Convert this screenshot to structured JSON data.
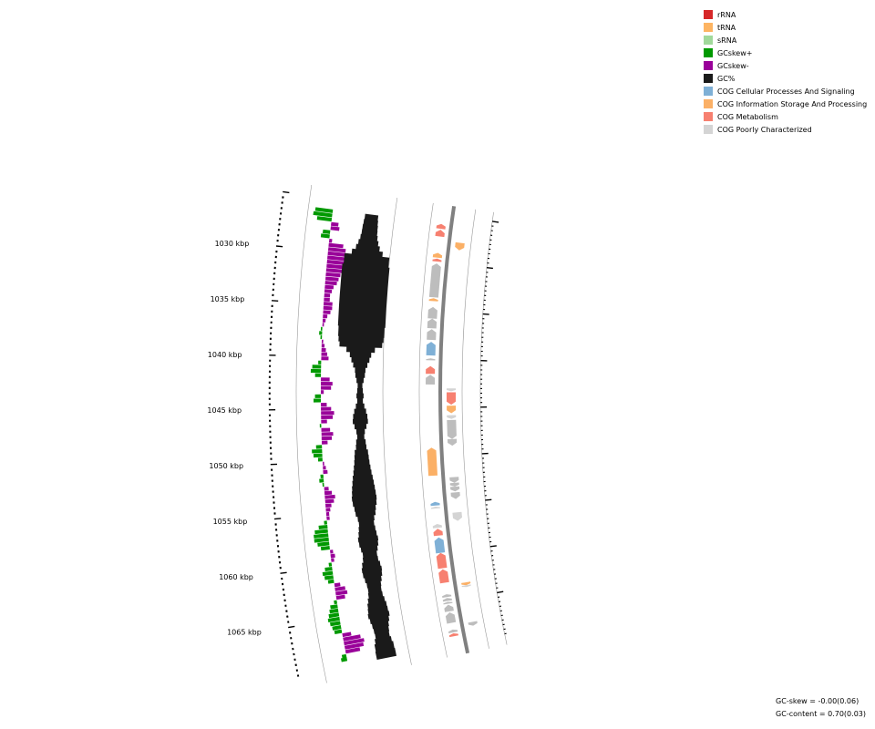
{
  "colors": {
    "rRNA": "#d62728",
    "tRNA": "#fdb462",
    "sRNA": "#a1d99b",
    "GCskew_pos": "#009900",
    "GCskew_neg": "#990099",
    "GC": "#1a1a1a",
    "cog_cellular": "#7fb0d6",
    "cog_information": "#fbb066",
    "cog_metabolism": "#f78070",
    "cog_poorly": "#d4d4d4",
    "feature_gray": "#bdbdbd",
    "backbone": "#808080"
  },
  "legend": [
    {
      "label": "rRNA",
      "color_key": "rRNA"
    },
    {
      "label": "tRNA",
      "color_key": "tRNA"
    },
    {
      "label": "sRNA",
      "color_key": "sRNA"
    },
    {
      "label": "GCskew+",
      "color_key": "GCskew_pos"
    },
    {
      "label": "GCskew-",
      "color_key": "GCskew_neg"
    },
    {
      "label": "GC%",
      "color_key": "GC"
    },
    {
      "label": "COG Cellular Processes And Signaling",
      "color_key": "cog_cellular"
    },
    {
      "label": "COG Information Storage And Processing",
      "color_key": "cog_information"
    },
    {
      "label": "COG Metabolism",
      "color_key": "cog_metabolism"
    },
    {
      "label": "COG Poorly Characterized",
      "color_key": "cog_poorly"
    }
  ],
  "stats": {
    "gc_skew": "GC-skew = -0.00(0.06)",
    "gc_content": "GC-content = 0.70(0.03)"
  },
  "axis": {
    "unit": "kbp",
    "start_kbp": 1026.0,
    "end_kbp": 1068.7,
    "labels": [
      {
        "kbp": 1030,
        "text": "1030 kbp"
      },
      {
        "kbp": 1035,
        "text": "1035 kbp"
      },
      {
        "kbp": 1040,
        "text": "1040 kbp"
      },
      {
        "kbp": 1045,
        "text": "1045 kbp"
      },
      {
        "kbp": 1050,
        "text": "1050 kbp"
      },
      {
        "kbp": 1055,
        "text": "1055 kbp"
      },
      {
        "kbp": 1060,
        "text": "1060 kbp"
      },
      {
        "kbp": 1065,
        "text": "1065 kbp"
      }
    ]
  },
  "gc_skew": [
    [
      1026.0,
      0.6
    ],
    [
      1026.4,
      0.65
    ],
    [
      1026.8,
      0.5
    ],
    [
      1027.2,
      -0.25
    ],
    [
      1027.6,
      -0.3
    ],
    [
      1028.0,
      0.25
    ],
    [
      1028.4,
      0.3
    ],
    [
      1028.8,
      -0.1
    ],
    [
      1029.2,
      -0.5
    ],
    [
      1029.6,
      -0.6
    ],
    [
      1030.0,
      -0.7
    ],
    [
      1030.4,
      -0.7
    ],
    [
      1030.8,
      -0.65
    ],
    [
      1031.2,
      -0.6
    ],
    [
      1031.6,
      -0.55
    ],
    [
      1032.0,
      -0.5
    ],
    [
      1032.4,
      -0.45
    ],
    [
      1032.8,
      -0.4
    ],
    [
      1033.2,
      -0.3
    ],
    [
      1033.6,
      -0.25
    ],
    [
      1034.0,
      -0.2
    ],
    [
      1034.4,
      -0.2
    ],
    [
      1034.8,
      -0.3
    ],
    [
      1035.2,
      -0.3
    ],
    [
      1035.6,
      -0.25
    ],
    [
      1036.0,
      -0.15
    ],
    [
      1036.4,
      -0.1
    ],
    [
      1036.8,
      -0.05
    ],
    [
      1037.2,
      0.05
    ],
    [
      1037.6,
      0.1
    ],
    [
      1038.0,
      0.05
    ],
    [
      1038.4,
      -0.05
    ],
    [
      1038.8,
      -0.1
    ],
    [
      1039.2,
      -0.15
    ],
    [
      1039.6,
      -0.2
    ],
    [
      1040.0,
      -0.25
    ],
    [
      1040.4,
      0.1
    ],
    [
      1040.8,
      0.3
    ],
    [
      1041.2,
      0.35
    ],
    [
      1041.6,
      0.2
    ],
    [
      1042.0,
      -0.3
    ],
    [
      1042.4,
      -0.4
    ],
    [
      1042.8,
      -0.35
    ],
    [
      1043.2,
      -0.1
    ],
    [
      1043.6,
      0.2
    ],
    [
      1044.0,
      0.25
    ],
    [
      1044.4,
      -0.2
    ],
    [
      1044.8,
      -0.35
    ],
    [
      1045.2,
      -0.45
    ],
    [
      1045.6,
      -0.4
    ],
    [
      1046.0,
      -0.2
    ],
    [
      1046.4,
      0.05
    ],
    [
      1046.8,
      -0.3
    ],
    [
      1047.2,
      -0.4
    ],
    [
      1047.6,
      -0.35
    ],
    [
      1048.0,
      -0.2
    ],
    [
      1048.4,
      0.2
    ],
    [
      1048.8,
      0.35
    ],
    [
      1049.2,
      0.3
    ],
    [
      1049.6,
      0.15
    ],
    [
      1050.0,
      -0.05
    ],
    [
      1050.4,
      -0.1
    ],
    [
      1050.8,
      -0.15
    ],
    [
      1051.2,
      0.1
    ],
    [
      1051.6,
      0.15
    ],
    [
      1052.0,
      0.05
    ],
    [
      1052.4,
      -0.15
    ],
    [
      1052.8,
      -0.25
    ],
    [
      1053.2,
      -0.35
    ],
    [
      1053.6,
      -0.3
    ],
    [
      1054.0,
      -0.2
    ],
    [
      1054.4,
      -0.15
    ],
    [
      1054.8,
      -0.1
    ],
    [
      1055.2,
      -0.1
    ],
    [
      1055.6,
      0.1
    ],
    [
      1056.0,
      0.3
    ],
    [
      1056.4,
      0.45
    ],
    [
      1056.8,
      0.5
    ],
    [
      1057.2,
      0.5
    ],
    [
      1057.6,
      0.4
    ],
    [
      1058.0,
      0.3
    ],
    [
      1058.4,
      -0.1
    ],
    [
      1058.8,
      -0.15
    ],
    [
      1059.2,
      -0.1
    ],
    [
      1059.6,
      0.1
    ],
    [
      1060.0,
      0.25
    ],
    [
      1060.4,
      0.35
    ],
    [
      1060.8,
      0.3
    ],
    [
      1061.2,
      0.2
    ],
    [
      1061.6,
      -0.2
    ],
    [
      1062.0,
      -0.35
    ],
    [
      1062.4,
      -0.4
    ],
    [
      1062.8,
      -0.3
    ],
    [
      1063.2,
      0.1
    ],
    [
      1063.6,
      0.25
    ],
    [
      1064.0,
      0.3
    ],
    [
      1064.4,
      0.35
    ],
    [
      1064.8,
      0.4
    ],
    [
      1065.2,
      0.35
    ],
    [
      1065.6,
      0.3
    ],
    [
      1066.0,
      0.25
    ],
    [
      1066.4,
      -0.3
    ],
    [
      1066.8,
      -0.6
    ],
    [
      1067.2,
      -0.7
    ],
    [
      1067.6,
      -0.65
    ],
    [
      1068.0,
      -0.5
    ],
    [
      1068.4,
      0.15
    ],
    [
      1068.7,
      0.2
    ]
  ],
  "gc_content": [
    [
      1026.0,
      0.28
    ],
    [
      1026.5,
      0.3
    ],
    [
      1027.0,
      0.32
    ],
    [
      1027.5,
      0.33
    ],
    [
      1028.0,
      0.36
    ],
    [
      1028.5,
      0.42
    ],
    [
      1029.0,
      0.5
    ],
    [
      1029.5,
      0.65
    ],
    [
      1030.0,
      0.95
    ],
    [
      1031.0,
      1.0
    ],
    [
      1032.0,
      1.0
    ],
    [
      1033.0,
      1.0
    ],
    [
      1034.0,
      1.0
    ],
    [
      1035.0,
      1.0
    ],
    [
      1036.0,
      1.0
    ],
    [
      1037.0,
      0.97
    ],
    [
      1038.0,
      0.95
    ],
    [
      1038.5,
      0.9
    ],
    [
      1039.0,
      0.6
    ],
    [
      1039.5,
      0.45
    ],
    [
      1040.0,
      0.38
    ],
    [
      1040.5,
      0.3
    ],
    [
      1041.0,
      0.22
    ],
    [
      1041.5,
      0.2
    ],
    [
      1042.0,
      0.15
    ],
    [
      1042.5,
      0.1
    ],
    [
      1043.0,
      0.12
    ],
    [
      1043.5,
      0.15
    ],
    [
      1044.0,
      0.12
    ],
    [
      1044.5,
      0.18
    ],
    [
      1045.0,
      0.25
    ],
    [
      1045.5,
      0.3
    ],
    [
      1046.0,
      0.32
    ],
    [
      1046.5,
      0.25
    ],
    [
      1047.0,
      0.18
    ],
    [
      1047.5,
      0.15
    ],
    [
      1048.0,
      0.2
    ],
    [
      1048.5,
      0.22
    ],
    [
      1049.0,
      0.28
    ],
    [
      1049.5,
      0.3
    ],
    [
      1050.0,
      0.32
    ],
    [
      1050.5,
      0.35
    ],
    [
      1051.0,
      0.38
    ],
    [
      1051.5,
      0.42
    ],
    [
      1052.0,
      0.45
    ],
    [
      1052.5,
      0.48
    ],
    [
      1053.0,
      0.5
    ],
    [
      1053.5,
      0.52
    ],
    [
      1054.0,
      0.5
    ],
    [
      1054.5,
      0.45
    ],
    [
      1055.0,
      0.42
    ],
    [
      1055.5,
      0.35
    ],
    [
      1056.0,
      0.32
    ],
    [
      1056.5,
      0.35
    ],
    [
      1057.0,
      0.38
    ],
    [
      1057.5,
      0.42
    ],
    [
      1058.0,
      0.4
    ],
    [
      1058.5,
      0.35
    ],
    [
      1059.0,
      0.3
    ],
    [
      1059.5,
      0.32
    ],
    [
      1060.0,
      0.38
    ],
    [
      1060.5,
      0.42
    ],
    [
      1061.0,
      0.4
    ],
    [
      1061.5,
      0.35
    ],
    [
      1062.0,
      0.3
    ],
    [
      1062.5,
      0.28
    ],
    [
      1063.0,
      0.3
    ],
    [
      1063.5,
      0.35
    ],
    [
      1064.0,
      0.4
    ],
    [
      1064.5,
      0.42
    ],
    [
      1065.0,
      0.45
    ],
    [
      1065.5,
      0.4
    ],
    [
      1066.0,
      0.35
    ],
    [
      1066.5,
      0.32
    ],
    [
      1067.0,
      0.3
    ],
    [
      1067.5,
      0.35
    ],
    [
      1068.0,
      0.4
    ],
    [
      1068.7,
      0.42
    ]
  ],
  "genes": [
    {
      "start": 1026.0,
      "end": 1026.5,
      "lane": "plus",
      "color_key": "cog_metabolism"
    },
    {
      "start": 1026.6,
      "end": 1027.3,
      "lane": "plus",
      "color_key": "cog_metabolism"
    },
    {
      "start": 1027.7,
      "end": 1028.5,
      "lane": "minus",
      "color_key": "cog_information"
    },
    {
      "start": 1029.0,
      "end": 1029.5,
      "lane": "plus",
      "color_key": "cog_information"
    },
    {
      "start": 1029.6,
      "end": 1029.9,
      "lane": "plus",
      "color_key": "cog_metabolism"
    },
    {
      "start": 1030.1,
      "end": 1033.6,
      "lane": "plus",
      "color_key": "feature_gray"
    },
    {
      "start": 1033.7,
      "end": 1034.0,
      "lane": "plus",
      "color_key": "cog_information"
    },
    {
      "start": 1034.6,
      "end": 1035.8,
      "lane": "plus",
      "color_key": "feature_gray"
    },
    {
      "start": 1035.8,
      "end": 1036.8,
      "lane": "plus",
      "color_key": "feature_gray"
    },
    {
      "start": 1036.9,
      "end": 1038.0,
      "lane": "plus",
      "color_key": "feature_gray"
    },
    {
      "start": 1038.2,
      "end": 1039.6,
      "lane": "plus",
      "color_key": "cog_cellular"
    },
    {
      "start": 1039.9,
      "end": 1040.1,
      "lane": "plus",
      "color_key": "feature_gray"
    },
    {
      "start": 1040.7,
      "end": 1041.5,
      "lane": "plus",
      "color_key": "cog_metabolism"
    },
    {
      "start": 1041.6,
      "end": 1042.6,
      "lane": "plus",
      "color_key": "feature_gray"
    },
    {
      "start": 1043.0,
      "end": 1043.3,
      "lane": "minus",
      "color_key": "cog_poorly"
    },
    {
      "start": 1043.4,
      "end": 1044.7,
      "lane": "minus",
      "color_key": "cog_metabolism"
    },
    {
      "start": 1044.8,
      "end": 1045.6,
      "lane": "minus",
      "color_key": "cog_information"
    },
    {
      "start": 1045.8,
      "end": 1046.2,
      "lane": "minus",
      "color_key": "cog_poorly"
    },
    {
      "start": 1046.3,
      "end": 1048.3,
      "lane": "minus",
      "color_key": "feature_gray"
    },
    {
      "start": 1048.3,
      "end": 1049.0,
      "lane": "minus",
      "color_key": "feature_gray"
    },
    {
      "start": 1049.1,
      "end": 1052.0,
      "lane": "plus",
      "color_key": "cog_information"
    },
    {
      "start": 1052.3,
      "end": 1052.9,
      "lane": "minus",
      "color_key": "feature_gray"
    },
    {
      "start": 1052.9,
      "end": 1053.3,
      "lane": "minus",
      "color_key": "feature_gray"
    },
    {
      "start": 1053.3,
      "end": 1053.8,
      "lane": "minus",
      "color_key": "feature_gray"
    },
    {
      "start": 1053.9,
      "end": 1054.6,
      "lane": "minus",
      "color_key": "feature_gray"
    },
    {
      "start": 1054.7,
      "end": 1055.1,
      "lane": "plus",
      "color_key": "cog_cellular"
    },
    {
      "start": 1055.2,
      "end": 1055.4,
      "lane": "plus",
      "color_key": "cog_poorly"
    },
    {
      "start": 1056.0,
      "end": 1056.9,
      "lane": "minus",
      "color_key": "cog_poorly"
    },
    {
      "start": 1057.0,
      "end": 1057.4,
      "lane": "plus",
      "color_key": "cog_poorly"
    },
    {
      "start": 1057.5,
      "end": 1058.2,
      "lane": "plus",
      "color_key": "cog_metabolism"
    },
    {
      "start": 1058.4,
      "end": 1060.0,
      "lane": "plus",
      "color_key": "cog_cellular"
    },
    {
      "start": 1060.0,
      "end": 1061.6,
      "lane": "plus",
      "color_key": "cog_metabolism"
    },
    {
      "start": 1061.7,
      "end": 1063.1,
      "lane": "plus",
      "color_key": "cog_metabolism"
    },
    {
      "start": 1063.4,
      "end": 1063.7,
      "lane": "minus",
      "color_key": "cog_information"
    },
    {
      "start": 1063.7,
      "end": 1063.9,
      "lane": "minus",
      "color_key": "cog_poorly"
    },
    {
      "start": 1064.3,
      "end": 1064.6,
      "lane": "plus",
      "color_key": "feature_gray"
    },
    {
      "start": 1064.7,
      "end": 1065.0,
      "lane": "plus",
      "color_key": "feature_gray"
    },
    {
      "start": 1065.1,
      "end": 1065.3,
      "lane": "plus",
      "color_key": "feature_gray"
    },
    {
      "start": 1065.4,
      "end": 1066.1,
      "lane": "plus",
      "color_key": "feature_gray"
    },
    {
      "start": 1066.2,
      "end": 1067.3,
      "lane": "plus",
      "color_key": "feature_gray"
    },
    {
      "start": 1067.6,
      "end": 1068.0,
      "lane": "minus",
      "color_key": "feature_gray"
    },
    {
      "start": 1068.0,
      "end": 1068.3,
      "lane": "plus",
      "color_key": "feature_gray"
    },
    {
      "start": 1068.4,
      "end": 1068.7,
      "lane": "plus",
      "color_key": "cog_metabolism"
    }
  ]
}
